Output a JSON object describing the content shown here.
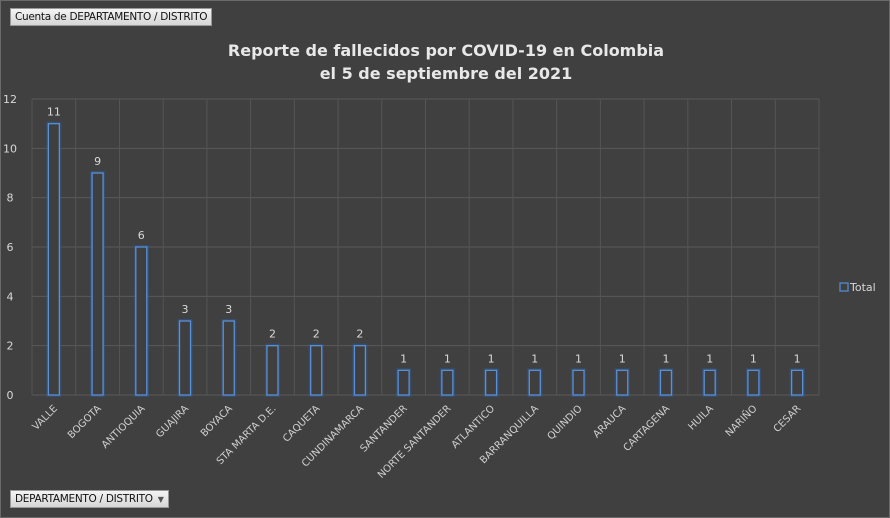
{
  "field_buttons": {
    "values_field": "Cuenta de DEPARTAMENTO / DISTRITO",
    "axis_field": "DEPARTAMENTO / DISTRITO",
    "axis_field_icon": "dropdown-arrow-icon"
  },
  "chart_data": {
    "type": "bar",
    "title": [
      "Reporte de fallecidos por COVID-19 en Colombia",
      "el 5 de septiembre del 2021"
    ],
    "categories": [
      "VALLE",
      "BOGOTA",
      "ANTIOQUIA",
      "GUAJIRA",
      "BOYACA",
      "STA MARTA D.E.",
      "CAQUETA",
      "CUNDINAMARCA",
      "SANTANDER",
      "NORTE SANTANDER",
      "ATLANTICO",
      "BARRANQUILLA",
      "QUINDIO",
      "ARAUCA",
      "CARTAGENA",
      "HUILA",
      "NARIÑO",
      "CESAR"
    ],
    "series": [
      {
        "name": "Total",
        "values": [
          11,
          9,
          6,
          3,
          3,
          2,
          2,
          2,
          1,
          1,
          1,
          1,
          1,
          1,
          1,
          1,
          1,
          1
        ],
        "color": "#4f81bd"
      }
    ],
    "yticks": [
      0,
      2,
      4,
      6,
      8,
      10,
      12
    ],
    "ylim": [
      0,
      12
    ],
    "grid": true,
    "data_labels": true,
    "legend_position": "right",
    "xlabel": "",
    "ylabel": ""
  }
}
